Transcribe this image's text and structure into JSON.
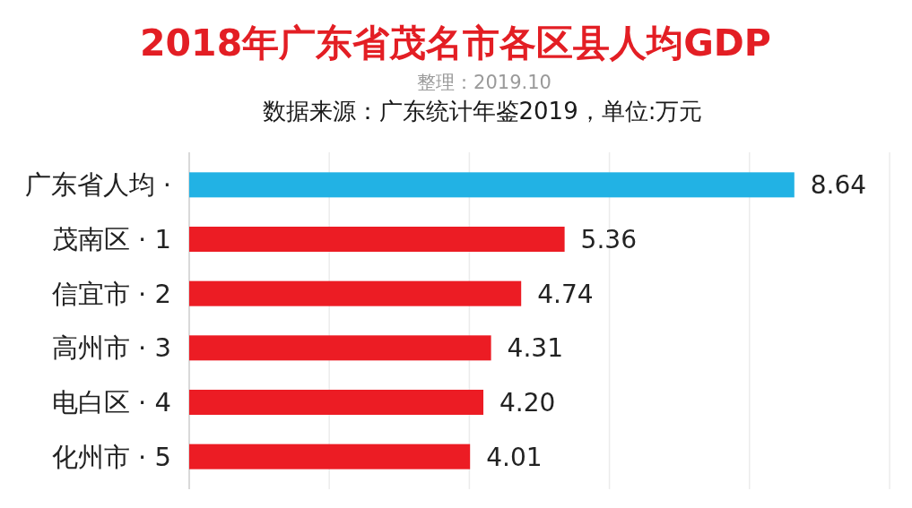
{
  "chart_data": {
    "type": "bar",
    "orientation": "horizontal",
    "title": "2018年广东省茂名市各区县人均GDP",
    "subtitle": "整理：2019.10",
    "annotations": [
      "数据来源：广东统计年鉴2019，单位:万元"
    ],
    "categories": [
      "广东省人均 ·",
      "茂南区 · 1",
      "信宜市 · 2",
      "高州市 · 3",
      "电白区 · 4",
      "化州市 · 5"
    ],
    "values": [
      8.64,
      5.36,
      4.74,
      4.31,
      4.2,
      4.01
    ],
    "value_labels": [
      "8.64",
      "5.36",
      "4.74",
      "4.31",
      "4.20",
      "4.01"
    ],
    "colors": [
      "#22b2e4",
      "#ec1c24",
      "#ec1c24",
      "#ec1c24",
      "#ec1c24",
      "#ec1c24"
    ],
    "xlim": [
      0,
      10
    ],
    "xticks": [
      {
        "value": 0,
        "label": null
      },
      {
        "value": 2,
        "label": null
      },
      {
        "value": 4,
        "label": null
      },
      {
        "value": 6,
        "label": null
      },
      {
        "value": 8,
        "label": null
      },
      {
        "value": 10,
        "label": null
      }
    ],
    "grid": "x",
    "tick_labels": "y"
  }
}
